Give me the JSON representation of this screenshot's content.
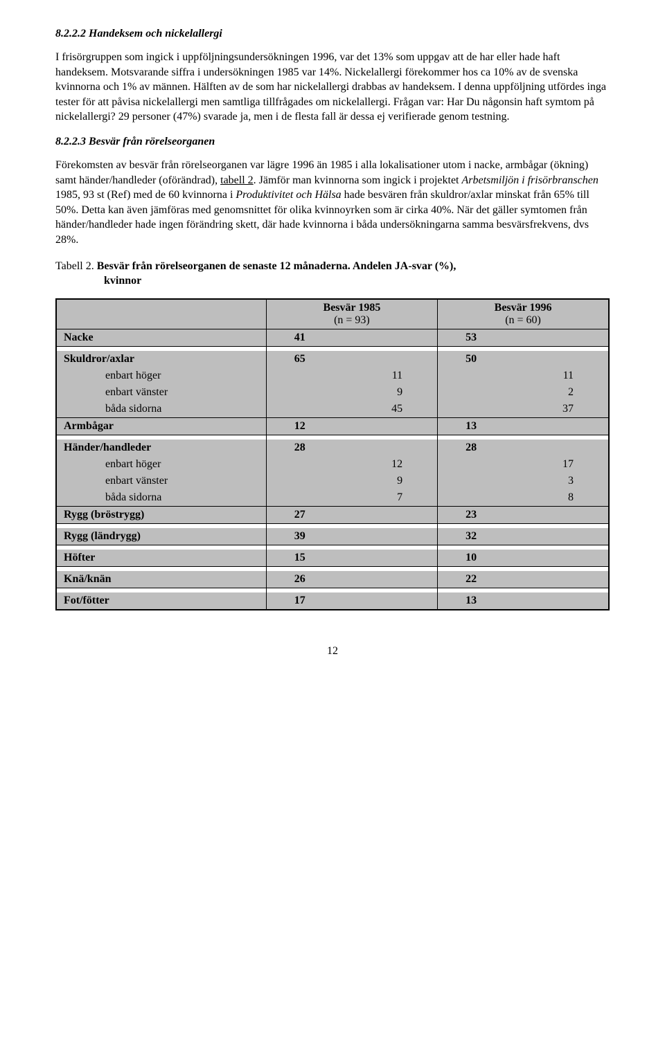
{
  "section1": {
    "heading": "8.2.2.2 Handeksem och nickelallergi",
    "para": "I frisörgruppen som ingick i uppföljningsundersökningen 1996, var det 13% som uppgav att de har eller hade haft handeksem. Motsvarande siffra i undersökningen 1985 var 14%. Nickelallergi förekommer hos ca 10% av de svenska kvinnorna och 1% av männen. Hälften av de som har nickelallergi drabbas av handeksem. I denna uppföljning utfördes inga tester för att påvisa nickelallergi men samtliga tillfrågades om nickelallergi. Frågan var: Har Du någonsin haft symtom på nickelallergi? 29 personer (47%) svarade ja, men i de flesta fall är dessa ej verifierade genom testning."
  },
  "section2": {
    "heading": "8.2.2.3 Besvär från rörelseorganen",
    "para1a": "Förekomsten av besvär från rörelseorganen var lägre 1996 än 1985 i alla lokalisationer utom i nacke, armbågar (ökning) samt händer/handleder (oförändrad), ",
    "para1_link": "tabell 2",
    "para1b": ".",
    "para2a": "Jämför man kvinnorna som ingick i projektet ",
    "para2_i1": "Arbetsmiljön i frisörbranschen",
    "para2b": " 1985, 93 st (Ref) med de 60 kvinnorna i ",
    "para2_i2": "Produktivitet och Hälsa",
    "para2c": " hade besvären från skuldror/axlar minskat från 65% till 50%. Detta kan även jämföras med genomsnittet för olika kvinnoyrken som är cirka 40%. När det gäller symtomen från händer/handleder hade ingen förändring skett, där hade kvinnorna i båda undersökningarna samma besvärsfrekvens, dvs 28%."
  },
  "table": {
    "caption_lead": "Tabell 2.  ",
    "caption_bold1": "Besvär från rörelseorganen de senaste 12 månaderna. Andelen JA-svar (%),",
    "caption_bold2": "kvinnor",
    "header_col1": "",
    "header_col2a": "Besvär 1985",
    "header_col2b": "(n = 93)",
    "header_col3a": "Besvär 1996",
    "header_col3b": "(n = 60)",
    "rows": [
      {
        "type": "main",
        "label": "Nacke",
        "v1": "41",
        "v2": "53",
        "divider": true
      },
      {
        "type": "spacer"
      },
      {
        "type": "main",
        "label": "Skuldror/axlar",
        "v1": "65",
        "v2": "50"
      },
      {
        "type": "sub",
        "label": "enbart höger",
        "v1": "11",
        "v2": "11"
      },
      {
        "type": "sub",
        "label": "enbart vänster",
        "v1": "9",
        "v2": "2"
      },
      {
        "type": "sub",
        "label": "båda sidorna",
        "v1": "45",
        "v2": "37",
        "divider": true
      },
      {
        "type": "main",
        "label": "Armbågar",
        "v1": "12",
        "v2": "13",
        "divider": true
      },
      {
        "type": "spacer"
      },
      {
        "type": "main",
        "label": "Händer/handleder",
        "v1": "28",
        "v2": "28"
      },
      {
        "type": "sub",
        "label": "enbart höger",
        "v1": "12",
        "v2": "17"
      },
      {
        "type": "sub",
        "label": "enbart vänster",
        "v1": "9",
        "v2": "3"
      },
      {
        "type": "sub",
        "label": "båda sidorna",
        "v1": "7",
        "v2": "8",
        "divider": true
      },
      {
        "type": "main",
        "label": "Rygg (bröstrygg)",
        "v1": "27",
        "v2": "23",
        "divider": true
      },
      {
        "type": "spacer"
      },
      {
        "type": "main",
        "label": "Rygg (ländrygg)",
        "v1": "39",
        "v2": "32",
        "divider": true
      },
      {
        "type": "spacer"
      },
      {
        "type": "main",
        "label": "Höfter",
        "v1": "15",
        "v2": "10",
        "divider": true
      },
      {
        "type": "spacer"
      },
      {
        "type": "main",
        "label": "Knä/knän",
        "v1": "26",
        "v2": "22",
        "divider": true
      },
      {
        "type": "spacer"
      },
      {
        "type": "main",
        "label": "Fot/fötter",
        "v1": "17",
        "v2": "13",
        "divider": true,
        "last": true
      }
    ]
  },
  "pagenum": "12",
  "colors": {
    "cell_bg": "#bebebe",
    "border": "#000000",
    "text": "#000000",
    "page_bg": "#ffffff"
  },
  "typography": {
    "body_family": "Times New Roman",
    "body_size_pt": 12,
    "heading_style": "bold italic"
  }
}
